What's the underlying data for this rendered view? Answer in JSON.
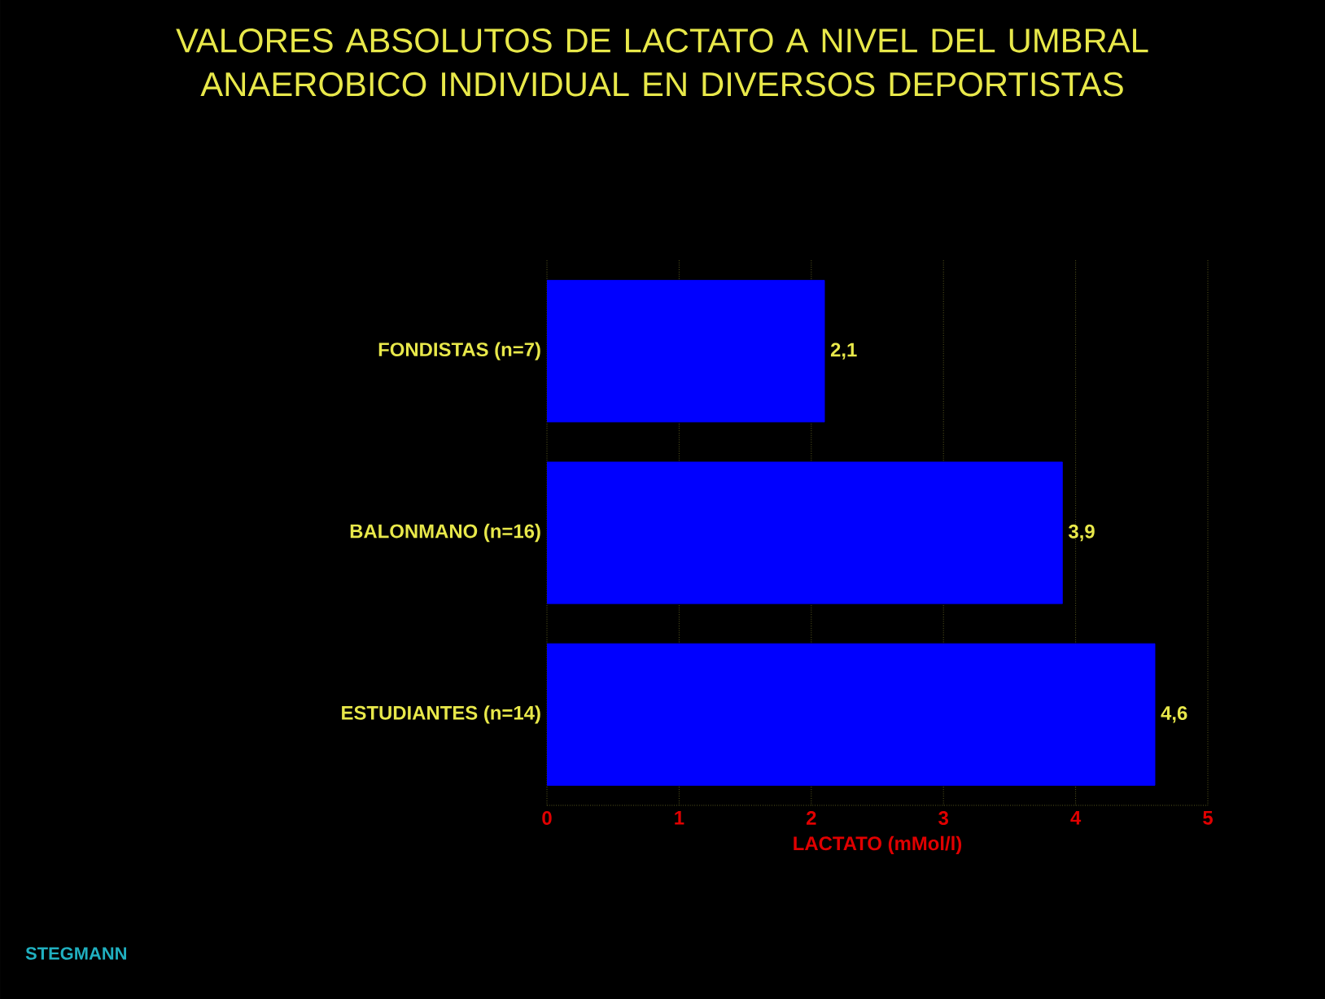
{
  "chart_data": {
    "type": "bar",
    "orientation": "horizontal",
    "title": "VALORES ABSOLUTOS DE LACTATO A NIVEL DEL UMBRAL ANAEROBICO INDIVIDUAL EN DIVERSOS DEPORTISTAS",
    "categories": [
      "FONDISTAS (n=7)",
      "BALONMANO (n=16)",
      "ESTUDIANTES (n=14)"
    ],
    "values": [
      2.1,
      3.9,
      4.6
    ],
    "value_labels": [
      "2,1",
      "3,9",
      "4,6"
    ],
    "color": "#0000ff",
    "xlabel": "LACTATO (mMol/l)",
    "xlim": [
      0,
      5
    ],
    "xticks": [
      0,
      1,
      2,
      3,
      4,
      5
    ],
    "grid": "x",
    "annotations": [
      "STEGMANN"
    ]
  }
}
